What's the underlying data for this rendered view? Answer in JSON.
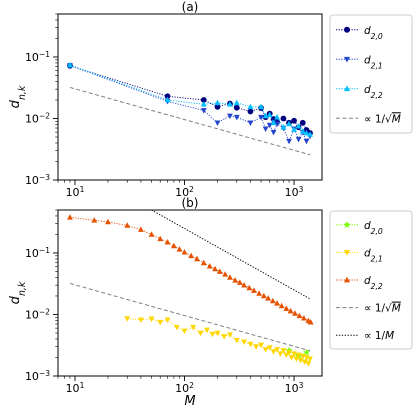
{
  "chart_data": [
    {
      "type": "line",
      "title": "(a)",
      "xlabel": "",
      "ylabel": "d_{n,k}",
      "xscale": "log",
      "yscale": "log",
      "xlim": [
        7,
        1800
      ],
      "ylim": [
        0.001,
        0.5
      ],
      "x_ticks": [
        10,
        100,
        1000
      ],
      "y_ticks": [
        0.001,
        0.01,
        0.1
      ],
      "grid": false,
      "legend_position": "outside-right",
      "series": [
        {
          "name": "d_{2,0}",
          "color": "#000080",
          "marker": "circle",
          "x": [
            9,
            70,
            150,
            200,
            260,
            300,
            400,
            500,
            550,
            600,
            650,
            700,
            800,
            900,
            1000,
            1100,
            1200,
            1300,
            1400
          ],
          "y": [
            0.072,
            0.023,
            0.02,
            0.0155,
            0.0175,
            0.015,
            0.013,
            0.0148,
            0.0105,
            0.012,
            0.0098,
            0.0088,
            0.01,
            0.0085,
            0.0092,
            0.0072,
            0.0085,
            0.0065,
            0.0058
          ]
        },
        {
          "name": "d_{2,1}",
          "color": "#2244cc",
          "marker": "triangle-down",
          "x": [
            9,
            70,
            150,
            200,
            260,
            300,
            400,
            500,
            550,
            600,
            650,
            700,
            800,
            900,
            1000,
            1100,
            1200,
            1300,
            1400
          ],
          "y": [
            0.073,
            0.019,
            0.0135,
            0.0085,
            0.011,
            0.0105,
            0.0085,
            0.0105,
            0.0068,
            0.0078,
            0.006,
            0.0082,
            0.007,
            0.0043,
            0.0068,
            0.0046,
            0.006,
            0.0043,
            0.0052
          ]
        },
        {
          "name": "d_{2,2}",
          "color": "#00bfff",
          "marker": "triangle-up",
          "x": [
            9,
            70,
            150,
            200,
            260,
            300,
            400,
            500,
            550,
            600,
            650,
            700,
            800,
            900,
            1000,
            1100,
            1200,
            1300,
            1400
          ],
          "y": [
            0.074,
            0.02,
            0.017,
            0.018,
            0.017,
            0.018,
            0.0155,
            0.0155,
            0.011,
            0.0115,
            0.0085,
            0.0105,
            0.0072,
            0.0082,
            0.0066,
            0.0075,
            0.0062,
            0.0058,
            0.0055
          ]
        },
        {
          "name": "∝ 1/√M",
          "color": "#808080",
          "dash": "dashed",
          "x": [
            9,
            1400
          ],
          "y": [
            0.032,
            0.00257
          ]
        }
      ]
    },
    {
      "type": "line",
      "title": "(b)",
      "xlabel": "M",
      "ylabel": "d_{n,k}",
      "xscale": "log",
      "yscale": "log",
      "xlim": [
        7,
        1800
      ],
      "ylim": [
        0.001,
        0.5
      ],
      "x_ticks": [
        10,
        100,
        1000
      ],
      "y_ticks": [
        0.001,
        0.01,
        0.1
      ],
      "grid": false,
      "legend_position": "outside-right",
      "series": [
        {
          "name": "d_{2,0}",
          "color": "#7CFC00",
          "marker": "star",
          "x": [
            900,
            1100,
            1300
          ],
          "y": [
            0.0026,
            0.0021,
            0.0024
          ]
        },
        {
          "name": "d_{2,1}",
          "color": "#FFD700",
          "marker": "triangle-down",
          "x": [
            30,
            40,
            50,
            60,
            70,
            85,
            100,
            120,
            140,
            160,
            180,
            200,
            230,
            260,
            300,
            350,
            400,
            450,
            500,
            550,
            600,
            650,
            700,
            750,
            800,
            850,
            900,
            950,
            1000,
            1050,
            1100,
            1150,
            1200,
            1250,
            1300,
            1350,
            1400
          ],
          "y": [
            0.0086,
            0.0082,
            0.0085,
            0.0075,
            0.0082,
            0.0062,
            0.0054,
            0.0062,
            0.005,
            0.0056,
            0.0048,
            0.005,
            0.0044,
            0.0047,
            0.0038,
            0.0036,
            0.0033,
            0.003,
            0.0032,
            0.0027,
            0.0029,
            0.0025,
            0.0027,
            0.0023,
            0.0026,
            0.0022,
            0.0024,
            0.002,
            0.0023,
            0.0019,
            0.0022,
            0.0018,
            0.0021,
            0.0017,
            0.002,
            0.0016,
            0.0019
          ]
        },
        {
          "name": "d_{2,2}",
          "color": "#E65100",
          "marker": "triangle-up",
          "x": [
            9,
            15,
            20,
            30,
            40,
            50,
            60,
            70,
            80,
            90,
            100,
            115,
            130,
            150,
            170,
            190,
            210,
            235,
            260,
            290,
            320,
            350,
            390,
            430,
            480,
            530,
            580,
            640,
            700,
            770,
            850,
            930,
            1020,
            1120,
            1230,
            1350,
            1420
          ],
          "y": [
            0.38,
            0.34,
            0.32,
            0.28,
            0.24,
            0.2,
            0.17,
            0.15,
            0.13,
            0.115,
            0.103,
            0.09,
            0.08,
            0.069,
            0.061,
            0.055,
            0.05,
            0.045,
            0.04,
            0.036,
            0.033,
            0.03,
            0.027,
            0.0245,
            0.022,
            0.02,
            0.0183,
            0.0166,
            0.0152,
            0.0138,
            0.0125,
            0.0114,
            0.0104,
            0.0095,
            0.0087,
            0.0079,
            0.0075
          ]
        },
        {
          "name": "∝ 1/√M",
          "color": "#808080",
          "dash": "dashed",
          "x": [
            9,
            1400
          ],
          "y": [
            0.032,
            0.00257
          ]
        },
        {
          "name": "∝ 1/M",
          "color": "#000000",
          "dash": "dotted",
          "x": [
            50,
            1400
          ],
          "y": [
            0.5,
            0.0179
          ]
        }
      ]
    }
  ]
}
